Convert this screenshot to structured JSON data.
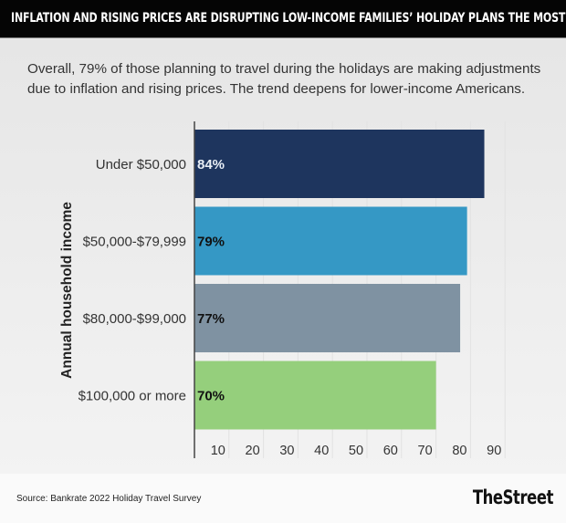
{
  "header": {
    "title": "INFLATION AND RISING PRICES ARE DISRUPTING LOW-INCOME FAMILIES’ HOLIDAY PLANS THE MOST"
  },
  "subtitle": "Overall, 79% of those planning to travel during the holidays are making adjustments due to inflation and rising prices. The trend deepens for lower-income Americans.",
  "footer": {
    "source": "Source: Bankrate 2022 Holiday Travel Survey",
    "logo": "TheStreet"
  },
  "chart_data": {
    "type": "bar",
    "orientation": "horizontal",
    "title": "INFLATION AND RISING PRICES ARE DISRUPTING LOW-INCOME FAMILIES’ HOLIDAY PLANS THE MOST",
    "ylabel": "Annual household income",
    "xlabel": "",
    "categories": [
      "Under $50,000",
      "$50,000-$79,999",
      "$80,000-$99,000",
      "$100,000 or more"
    ],
    "values": [
      84,
      79,
      77,
      70
    ],
    "data_labels": [
      "84%",
      "79%",
      "77%",
      "70%"
    ],
    "colors": [
      "#1e355e",
      "#3598c5",
      "#7f92a2",
      "#95cf7c"
    ],
    "label_colors": [
      "#e8eef5",
      "#111111",
      "#111111",
      "#111111"
    ],
    "xlim": [
      0,
      90
    ],
    "xticks": [
      10,
      20,
      30,
      40,
      50,
      60,
      70,
      80,
      90
    ],
    "xtick_labels": [
      "10",
      "20",
      "30",
      "40",
      "50",
      "60",
      "70",
      "80",
      "90"
    ],
    "grid": true
  }
}
